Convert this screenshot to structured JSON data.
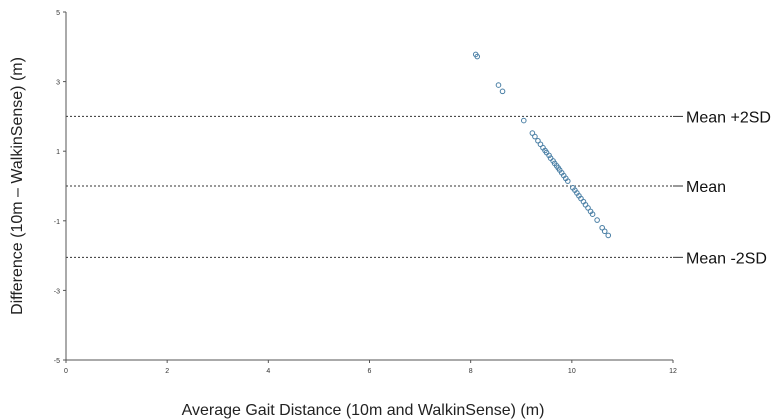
{
  "chart_data": {
    "type": "scatter",
    "title": "",
    "xlabel": "Average Gait Distance (10m and WalkinSense) (m)",
    "ylabel": "Difference (10m – WalkinSense) (m)",
    "xlim": [
      0,
      12
    ],
    "ylim": [
      -5,
      5
    ],
    "xticks": [
      0,
      2,
      4,
      6,
      8,
      10,
      12
    ],
    "yticks": [
      -5,
      -3,
      -1,
      1,
      3,
      5
    ],
    "grid": false,
    "colors": {
      "marker": "#4a7fa5",
      "reference_line": "#333333",
      "axis": "#555555"
    },
    "reference_lines": [
      {
        "label": "Mean +2SD",
        "y": 2.0
      },
      {
        "label": "Mean",
        "y": 0.0
      },
      {
        "label": "Mean -2SD",
        "y": -2.05
      }
    ],
    "points": [
      {
        "x": 8.1,
        "y": 3.78
      },
      {
        "x": 8.13,
        "y": 3.72
      },
      {
        "x": 8.55,
        "y": 2.9
      },
      {
        "x": 8.63,
        "y": 2.72
      },
      {
        "x": 9.05,
        "y": 1.88
      },
      {
        "x": 9.22,
        "y": 1.52
      },
      {
        "x": 9.27,
        "y": 1.42
      },
      {
        "x": 9.33,
        "y": 1.3
      },
      {
        "x": 9.38,
        "y": 1.2
      },
      {
        "x": 9.43,
        "y": 1.1
      },
      {
        "x": 9.47,
        "y": 1.02
      },
      {
        "x": 9.5,
        "y": 0.96
      },
      {
        "x": 9.55,
        "y": 0.88
      },
      {
        "x": 9.58,
        "y": 0.8
      },
      {
        "x": 9.63,
        "y": 0.72
      },
      {
        "x": 9.66,
        "y": 0.65
      },
      {
        "x": 9.7,
        "y": 0.58
      },
      {
        "x": 9.73,
        "y": 0.52
      },
      {
        "x": 9.76,
        "y": 0.46
      },
      {
        "x": 9.8,
        "y": 0.38
      },
      {
        "x": 9.84,
        "y": 0.3
      },
      {
        "x": 9.88,
        "y": 0.22
      },
      {
        "x": 9.92,
        "y": 0.14
      },
      {
        "x": 10.02,
        "y": -0.05
      },
      {
        "x": 10.06,
        "y": -0.12
      },
      {
        "x": 10.1,
        "y": -0.2
      },
      {
        "x": 10.14,
        "y": -0.28
      },
      {
        "x": 10.18,
        "y": -0.36
      },
      {
        "x": 10.23,
        "y": -0.45
      },
      {
        "x": 10.27,
        "y": -0.54
      },
      {
        "x": 10.32,
        "y": -0.63
      },
      {
        "x": 10.37,
        "y": -0.73
      },
      {
        "x": 10.41,
        "y": -0.81
      },
      {
        "x": 10.5,
        "y": -0.98
      },
      {
        "x": 10.6,
        "y": -1.2
      },
      {
        "x": 10.65,
        "y": -1.3
      },
      {
        "x": 10.72,
        "y": -1.42
      }
    ]
  }
}
